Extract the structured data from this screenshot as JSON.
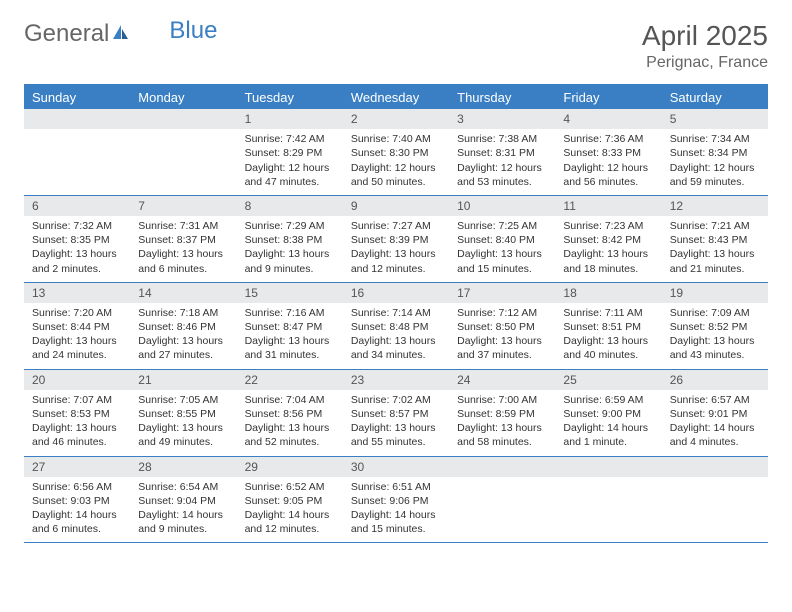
{
  "logo": {
    "part1": "General",
    "part2": "Blue"
  },
  "title": "April 2025",
  "location": "Perignac, France",
  "colors": {
    "accent": "#3a7fc4",
    "header_text": "#ffffff",
    "daynum_bg": "#e8e9ea",
    "body_text": "#333333",
    "title_text": "#555555"
  },
  "dayHeaders": [
    "Sunday",
    "Monday",
    "Tuesday",
    "Wednesday",
    "Thursday",
    "Friday",
    "Saturday"
  ],
  "weeks": [
    [
      null,
      null,
      {
        "n": "1",
        "sr": "7:42 AM",
        "ss": "8:29 PM",
        "dl": "12 hours and 47 minutes."
      },
      {
        "n": "2",
        "sr": "7:40 AM",
        "ss": "8:30 PM",
        "dl": "12 hours and 50 minutes."
      },
      {
        "n": "3",
        "sr": "7:38 AM",
        "ss": "8:31 PM",
        "dl": "12 hours and 53 minutes."
      },
      {
        "n": "4",
        "sr": "7:36 AM",
        "ss": "8:33 PM",
        "dl": "12 hours and 56 minutes."
      },
      {
        "n": "5",
        "sr": "7:34 AM",
        "ss": "8:34 PM",
        "dl": "12 hours and 59 minutes."
      }
    ],
    [
      {
        "n": "6",
        "sr": "7:32 AM",
        "ss": "8:35 PM",
        "dl": "13 hours and 2 minutes."
      },
      {
        "n": "7",
        "sr": "7:31 AM",
        "ss": "8:37 PM",
        "dl": "13 hours and 6 minutes."
      },
      {
        "n": "8",
        "sr": "7:29 AM",
        "ss": "8:38 PM",
        "dl": "13 hours and 9 minutes."
      },
      {
        "n": "9",
        "sr": "7:27 AM",
        "ss": "8:39 PM",
        "dl": "13 hours and 12 minutes."
      },
      {
        "n": "10",
        "sr": "7:25 AM",
        "ss": "8:40 PM",
        "dl": "13 hours and 15 minutes."
      },
      {
        "n": "11",
        "sr": "7:23 AM",
        "ss": "8:42 PM",
        "dl": "13 hours and 18 minutes."
      },
      {
        "n": "12",
        "sr": "7:21 AM",
        "ss": "8:43 PM",
        "dl": "13 hours and 21 minutes."
      }
    ],
    [
      {
        "n": "13",
        "sr": "7:20 AM",
        "ss": "8:44 PM",
        "dl": "13 hours and 24 minutes."
      },
      {
        "n": "14",
        "sr": "7:18 AM",
        "ss": "8:46 PM",
        "dl": "13 hours and 27 minutes."
      },
      {
        "n": "15",
        "sr": "7:16 AM",
        "ss": "8:47 PM",
        "dl": "13 hours and 31 minutes."
      },
      {
        "n": "16",
        "sr": "7:14 AM",
        "ss": "8:48 PM",
        "dl": "13 hours and 34 minutes."
      },
      {
        "n": "17",
        "sr": "7:12 AM",
        "ss": "8:50 PM",
        "dl": "13 hours and 37 minutes."
      },
      {
        "n": "18",
        "sr": "7:11 AM",
        "ss": "8:51 PM",
        "dl": "13 hours and 40 minutes."
      },
      {
        "n": "19",
        "sr": "7:09 AM",
        "ss": "8:52 PM",
        "dl": "13 hours and 43 minutes."
      }
    ],
    [
      {
        "n": "20",
        "sr": "7:07 AM",
        "ss": "8:53 PM",
        "dl": "13 hours and 46 minutes."
      },
      {
        "n": "21",
        "sr": "7:05 AM",
        "ss": "8:55 PM",
        "dl": "13 hours and 49 minutes."
      },
      {
        "n": "22",
        "sr": "7:04 AM",
        "ss": "8:56 PM",
        "dl": "13 hours and 52 minutes."
      },
      {
        "n": "23",
        "sr": "7:02 AM",
        "ss": "8:57 PM",
        "dl": "13 hours and 55 minutes."
      },
      {
        "n": "24",
        "sr": "7:00 AM",
        "ss": "8:59 PM",
        "dl": "13 hours and 58 minutes."
      },
      {
        "n": "25",
        "sr": "6:59 AM",
        "ss": "9:00 PM",
        "dl": "14 hours and 1 minute."
      },
      {
        "n": "26",
        "sr": "6:57 AM",
        "ss": "9:01 PM",
        "dl": "14 hours and 4 minutes."
      }
    ],
    [
      {
        "n": "27",
        "sr": "6:56 AM",
        "ss": "9:03 PM",
        "dl": "14 hours and 6 minutes."
      },
      {
        "n": "28",
        "sr": "6:54 AM",
        "ss": "9:04 PM",
        "dl": "14 hours and 9 minutes."
      },
      {
        "n": "29",
        "sr": "6:52 AM",
        "ss": "9:05 PM",
        "dl": "14 hours and 12 minutes."
      },
      {
        "n": "30",
        "sr": "6:51 AM",
        "ss": "9:06 PM",
        "dl": "14 hours and 15 minutes."
      },
      null,
      null,
      null
    ]
  ],
  "labels": {
    "sunrise": "Sunrise: ",
    "sunset": "Sunset: ",
    "daylight": "Daylight: "
  }
}
